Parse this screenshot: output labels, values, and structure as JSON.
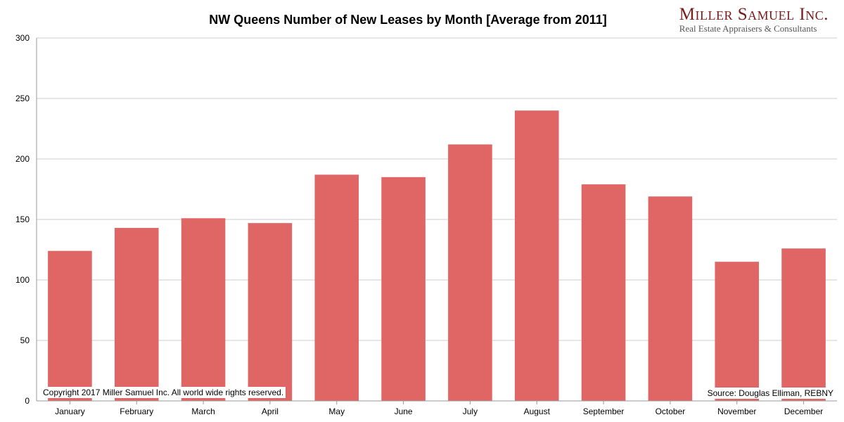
{
  "title": "NW Queens Number of New Leases by Month [Average from 2011]",
  "logo": {
    "name": "Miller Samuel Inc.",
    "tagline": "Real Estate Appraisers & Consultants"
  },
  "copyright": "Copyright 2017 Miller Samuel Inc.  All world wide rights reserved.",
  "source": "Source: Douglas Elliman, REBNY",
  "colors": {
    "bar": "#e06666",
    "grid": "#cccccc",
    "axis": "#999999"
  },
  "chart_data": {
    "type": "bar",
    "title": "NW Queens Number of New Leases by Month [Average from 2011]",
    "categories": [
      "January",
      "February",
      "March",
      "April",
      "May",
      "June",
      "July",
      "August",
      "September",
      "October",
      "November",
      "December"
    ],
    "values": [
      124,
      143,
      151,
      147,
      187,
      185,
      212,
      240,
      179,
      169,
      115,
      126
    ],
    "ylim": [
      0,
      300
    ],
    "yticks": [
      0,
      50,
      100,
      150,
      200,
      250,
      300
    ],
    "xlabel": "",
    "ylabel": "",
    "grid": true,
    "legend": "none"
  }
}
